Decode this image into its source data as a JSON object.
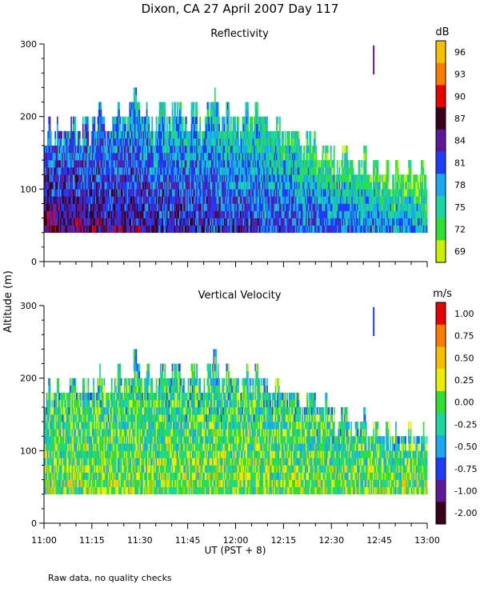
{
  "title": "Dixon, CA 27 April 2007  Day 117",
  "y_axis_label": "Altitude (m)",
  "x_axis_label": "UT  (PST + 8)",
  "footnote": "Raw data, no quality checks",
  "chart_data": [
    {
      "type": "heatmap",
      "title": "Reflectivity",
      "xlabel": "UT  (PST + 8)",
      "ylabel": "Altitude (m)",
      "ylim": [
        0,
        300
      ],
      "yticks": [
        0,
        100,
        200,
        300
      ],
      "xlim_minutes": [
        0,
        120
      ],
      "xtick_labels": [
        "11:00",
        "11:15",
        "11:30",
        "11:45",
        "12:00",
        "12:15",
        "12:30",
        "12:45",
        "13:00"
      ],
      "echo_base_m": 40,
      "colorbar": {
        "unit": "dB",
        "labels": [
          "96",
          "93",
          "90",
          "87",
          "84",
          "81",
          "78",
          "75",
          "72",
          "69"
        ],
        "colors": [
          "#f5c000",
          "#ff7a00",
          "#e80000",
          "#3a001a",
          "#5c1898",
          "#1e3cff",
          "#1aa8f0",
          "#18d8a0",
          "#30e030",
          "#c8f000"
        ]
      },
      "echo_top_m": [
        180,
        200,
        180,
        180,
        200,
        180,
        180,
        180,
        200,
        200,
        180,
        180,
        200,
        200,
        180,
        200,
        200,
        220,
        200,
        180,
        180,
        200,
        200,
        220,
        200,
        200,
        220,
        220,
        240,
        220,
        200,
        200,
        220,
        200,
        180,
        200,
        220,
        220,
        200,
        200,
        220,
        220,
        220,
        200,
        200,
        200,
        220,
        220,
        200,
        180,
        200,
        220,
        220,
        240,
        220,
        200,
        200,
        220,
        200,
        200,
        200,
        180,
        200,
        220,
        200,
        200,
        220,
        200,
        200,
        200,
        180,
        180,
        200,
        200,
        180,
        180,
        180,
        180,
        180,
        180,
        160,
        160,
        180,
        180,
        180,
        160,
        160,
        160,
        180,
        160,
        160,
        140,
        140,
        160,
        160,
        140,
        140,
        140,
        140,
        140,
        160,
        120,
        120,
        140,
        140,
        120,
        120,
        140,
        120,
        120,
        140,
        120,
        120,
        120,
        140,
        120,
        120,
        120,
        140,
        120
      ],
      "isolated_echo": {
        "minute": 103,
        "bottom_m": 258,
        "top_m": 298
      }
    },
    {
      "type": "heatmap",
      "title": "Vertical Velocity",
      "xlabel": "UT  (PST + 8)",
      "ylabel": "Altitude (m)",
      "ylim": [
        0,
        300
      ],
      "yticks": [
        0,
        100,
        200,
        300
      ],
      "xlim_minutes": [
        0,
        120
      ],
      "xtick_labels": [
        "11:00",
        "11:15",
        "11:30",
        "11:45",
        "12:00",
        "12:15",
        "12:30",
        "12:45",
        "13:00"
      ],
      "echo_base_m": 40,
      "colorbar": {
        "unit": "m/s",
        "labels": [
          "1.00",
          "0.75",
          "0.50",
          "0.25",
          "0.00",
          "-0.25",
          "-0.50",
          "-0.75",
          "-1.00",
          "-2.00"
        ],
        "colors": [
          "#e80000",
          "#ff7a00",
          "#f5c000",
          "#e8f000",
          "#30e030",
          "#18d8a0",
          "#1aa8f0",
          "#1e3cff",
          "#5c1898",
          "#3a001a"
        ]
      },
      "echo_top_m": [
        180,
        200,
        180,
        180,
        200,
        180,
        180,
        180,
        200,
        200,
        180,
        180,
        200,
        200,
        180,
        200,
        200,
        220,
        200,
        180,
        180,
        200,
        200,
        220,
        200,
        200,
        220,
        220,
        240,
        220,
        200,
        200,
        220,
        200,
        180,
        200,
        220,
        220,
        200,
        200,
        220,
        220,
        220,
        200,
        200,
        200,
        220,
        220,
        200,
        180,
        200,
        220,
        220,
        240,
        220,
        200,
        200,
        220,
        200,
        200,
        200,
        180,
        200,
        220,
        200,
        200,
        220,
        200,
        200,
        200,
        180,
        180,
        200,
        200,
        180,
        180,
        180,
        180,
        180,
        180,
        160,
        160,
        180,
        180,
        180,
        160,
        160,
        160,
        180,
        160,
        160,
        140,
        140,
        160,
        160,
        140,
        140,
        140,
        140,
        140,
        160,
        120,
        120,
        140,
        140,
        120,
        120,
        140,
        120,
        120,
        140,
        120,
        120,
        120,
        140,
        120,
        120,
        120,
        140,
        120
      ],
      "isolated_echo": {
        "minute": 103,
        "bottom_m": 258,
        "top_m": 298
      }
    }
  ]
}
